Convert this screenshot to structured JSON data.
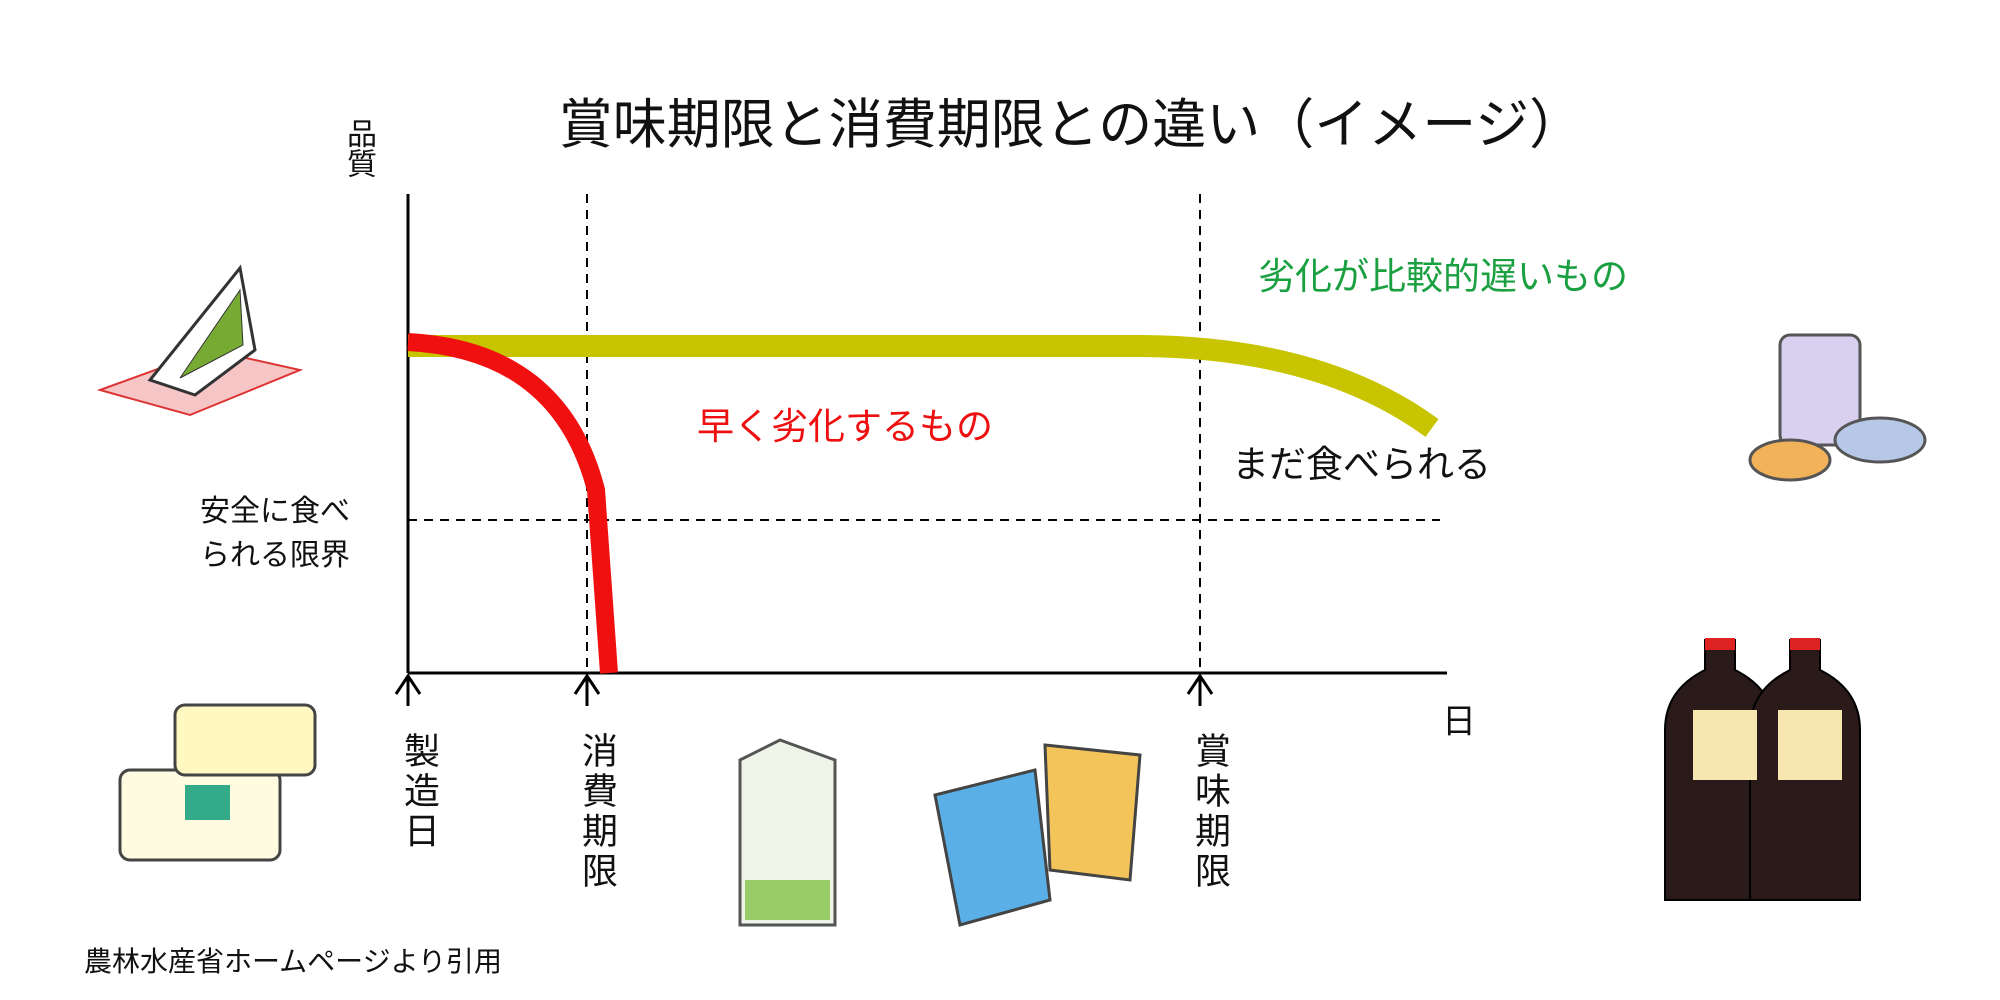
{
  "title": "賞味期限と消費期限との違い（イメージ）",
  "y_axis_label": "品質",
  "x_axis_label": "日",
  "safety_limit_label": [
    "安全に食べ",
    "られる限界"
  ],
  "slow_curve_label": "劣化が比較的遅いもの",
  "fast_curve_label": "早く劣化するもの",
  "still_edible_label": "まだ食べられる",
  "x_markers": [
    "製造日",
    "消費期限",
    "賞味期限"
  ],
  "source": "農林水産省ホームページより引用"
}
